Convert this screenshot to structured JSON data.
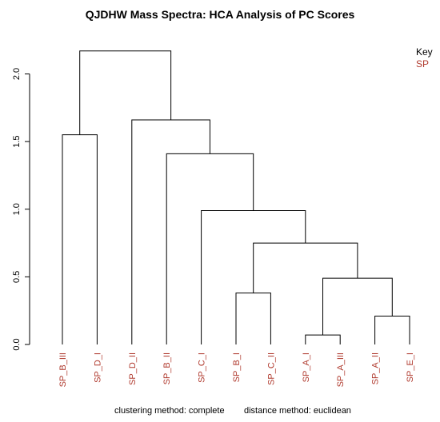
{
  "chart_data": {
    "type": "dendrogram",
    "title": "QJDHW Mass Spectra: HCA Analysis of PC Scores",
    "footer_left": "clustering method: complete",
    "footer_right": "distance method: euclidean",
    "y_ticks": [
      "0.0",
      "0.5",
      "1.0",
      "1.5",
      "2.0"
    ],
    "ylim": [
      0,
      2.2
    ],
    "leaf_color": "#b03a2e",
    "line_color": "#000000",
    "leaves": [
      "SP_B_III",
      "SP_D_I",
      "SP_D_II",
      "SP_B_II",
      "SP_C_I",
      "SP_B_I",
      "SP_C_II",
      "SP_A_I",
      "SP_A_III",
      "SP_A_II",
      "SP_E_I"
    ],
    "merges": [
      {
        "left": 0,
        "right": 1,
        "height": 1.55
      },
      {
        "left": 7,
        "right": 8,
        "height": 0.07
      },
      {
        "left": 9,
        "right": 10,
        "height": 0.21
      },
      {
        "left": 5,
        "right": 6,
        "height": 0.38
      },
      {
        "left": "m1",
        "right": "m2",
        "height": 0.49
      },
      {
        "left": "m3",
        "right": "m4",
        "height": 0.75
      },
      {
        "left": 4,
        "right": "m5",
        "height": 0.99
      },
      {
        "left": 3,
        "right": "m6",
        "height": 1.41
      },
      {
        "left": 2,
        "right": "m7",
        "height": 1.66
      },
      {
        "left": "m0",
        "right": "m8",
        "height": 2.17
      }
    ],
    "legend": {
      "title": "Key",
      "items": [
        {
          "label": "SP",
          "color": "#b03a2e"
        }
      ]
    }
  }
}
